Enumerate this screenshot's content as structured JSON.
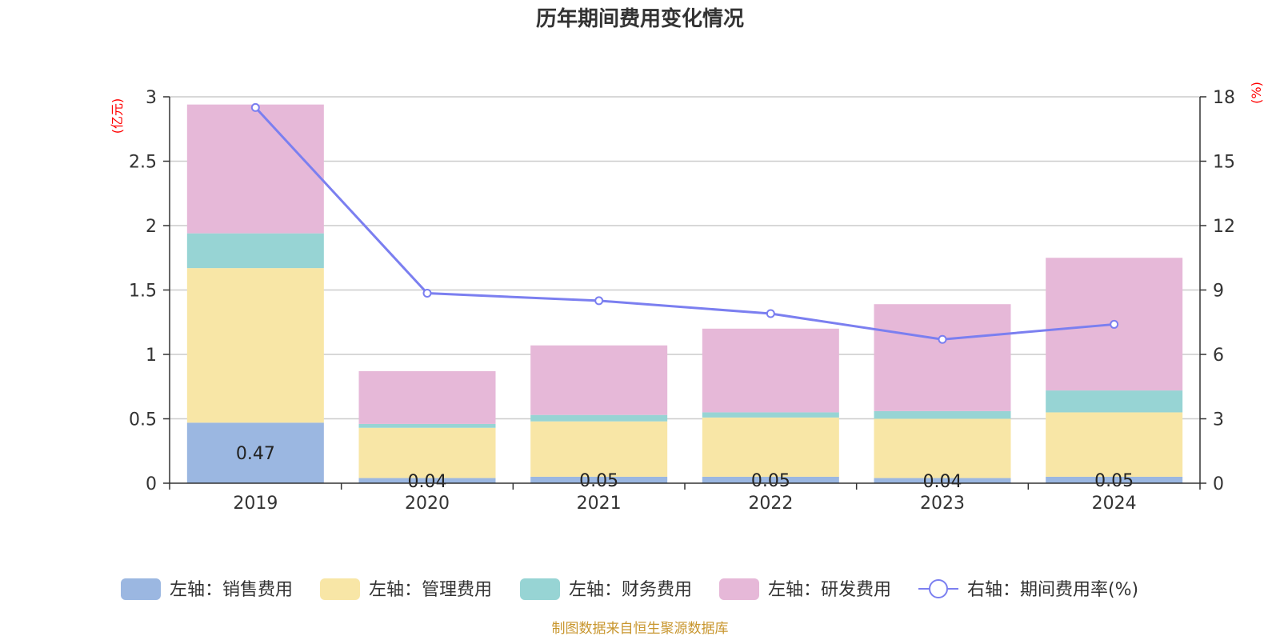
{
  "chart_data": {
    "type": "bar",
    "title": "历年期间费用变化情况",
    "categories": [
      "2019",
      "2020",
      "2021",
      "2022",
      "2023",
      "2024"
    ],
    "left_axis": {
      "unit_label": "(亿元)",
      "ylim": [
        0,
        3
      ],
      "ticks": [
        "0",
        "0.5",
        "1",
        "1.5",
        "2",
        "2.5",
        "3"
      ]
    },
    "right_axis": {
      "unit_label": "(%)",
      "ylim": [
        0,
        18
      ],
      "ticks": [
        "0",
        "3",
        "6",
        "9",
        "12",
        "15",
        "18"
      ]
    },
    "series": [
      {
        "name": "左轴：销售费用",
        "type": "bar",
        "stack": true,
        "color": "#9bb7e1",
        "values": [
          0.47,
          0.04,
          0.05,
          0.05,
          0.04,
          0.05
        ],
        "data_labels": [
          "0.47",
          "0.04",
          "0.05",
          "0.05",
          "0.04",
          "0.05"
        ]
      },
      {
        "name": "左轴：管理费用",
        "type": "bar",
        "stack": true,
        "color": "#f8e6a6",
        "values": [
          1.2,
          0.39,
          0.43,
          0.46,
          0.46,
          0.5
        ]
      },
      {
        "name": "左轴：财务费用",
        "type": "bar",
        "stack": true,
        "color": "#97d4d4",
        "values": [
          0.27,
          0.03,
          0.05,
          0.04,
          0.06,
          0.17
        ]
      },
      {
        "name": "左轴：研发费用",
        "type": "bar",
        "stack": true,
        "color": "#e6b8d8",
        "values": [
          1.0,
          0.41,
          0.54,
          0.65,
          0.83,
          1.03
        ]
      },
      {
        "name": "右轴：期间费用率(%)",
        "type": "line",
        "axis": "right",
        "color": "#7b7ff0",
        "values": [
          17.5,
          8.85,
          8.5,
          7.9,
          6.7,
          7.4
        ]
      }
    ],
    "legend_position": "bottom",
    "grid": true
  },
  "source_note": "制图数据来自恒生聚源数据库"
}
